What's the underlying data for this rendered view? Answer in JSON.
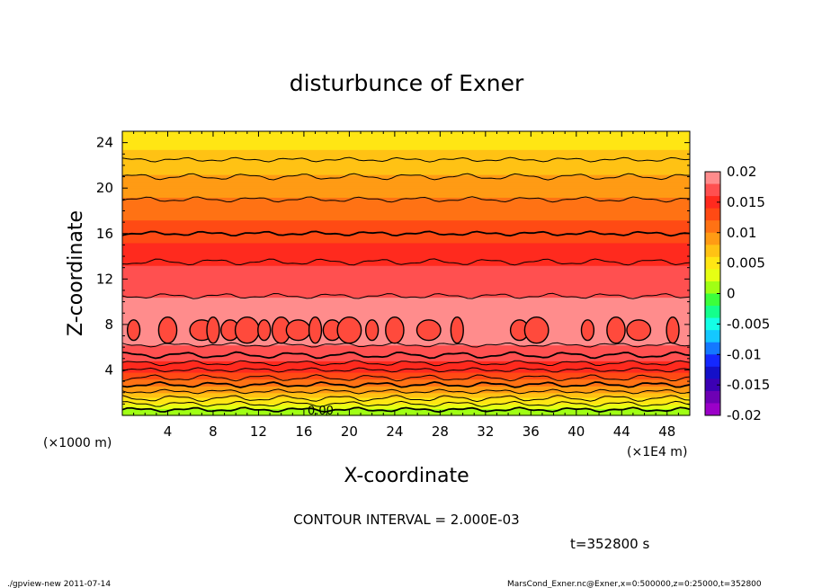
{
  "chart_data": {
    "type": "heatmap",
    "title": "disturbunce of Exner",
    "xlabel": "X-coordinate",
    "ylabel": "Z-coordinate",
    "x_unit_label": "(×1000 m)",
    "x_scale_label": "(×1E4 m)",
    "xlim": [
      0,
      50
    ],
    "ylim": [
      0,
      25
    ],
    "x_ticks": [
      4,
      8,
      12,
      16,
      20,
      24,
      28,
      32,
      36,
      40,
      44,
      48
    ],
    "y_ticks": [
      4,
      8,
      12,
      16,
      20,
      24
    ],
    "contour_interval_text": "CONTOUR INTERVAL = 2.000E-03",
    "contour_label": "0.00",
    "time_label": "t=352800 s",
    "colorbar": {
      "min": -0.02,
      "max": 0.02,
      "tick_labels": [
        "0.02",
        "0.015",
        "0.01",
        "0.005",
        "0",
        "-0.005",
        "-0.01",
        "-0.015",
        "-0.02"
      ],
      "colors": [
        "#ff8c8c",
        "#ff5050",
        "#ff2a1e",
        "#ff4a14",
        "#ff7214",
        "#ff9b14",
        "#ffc214",
        "#ffe614",
        "#e6ff14",
        "#a0ff14",
        "#3cff3c",
        "#14ff8c",
        "#14ffe6",
        "#14c8ff",
        "#1478ff",
        "#1428ff",
        "#1410c8",
        "#3c00b4",
        "#6e00b4",
        "#9b00c8"
      ]
    },
    "profile_z": [
      0,
      1,
      2,
      3,
      4,
      5,
      6,
      7,
      8,
      10,
      12,
      14,
      16,
      18,
      20,
      22,
      24,
      25
    ],
    "profile_value": [
      0.0,
      0.004,
      0.008,
      0.0115,
      0.0145,
      0.0165,
      0.0178,
      0.0185,
      0.0188,
      0.0182,
      0.017,
      0.0152,
      0.0132,
      0.0112,
      0.0092,
      0.0072,
      0.0054,
      0.0046
    ],
    "contour_levels_z": [
      0.5,
      1,
      1.5,
      2.1,
      2.7,
      3.3,
      4,
      4.6,
      5.3,
      6.2,
      10.5,
      13.5,
      16,
      19,
      21,
      22.5
    ],
    "closed_contours_x": [
      1,
      4,
      7,
      8,
      9.5,
      11,
      12.5,
      14,
      15.5,
      17,
      18.5,
      20,
      22,
      24,
      27,
      29.5,
      35,
      36.5,
      41,
      43.5,
      45.5,
      48.5
    ]
  },
  "footer": {
    "left": "./gpview-new   2011-07-14",
    "right": "MarsCond_Exner.nc@Exner,x=0:500000,z=0:25000,t=352800"
  }
}
